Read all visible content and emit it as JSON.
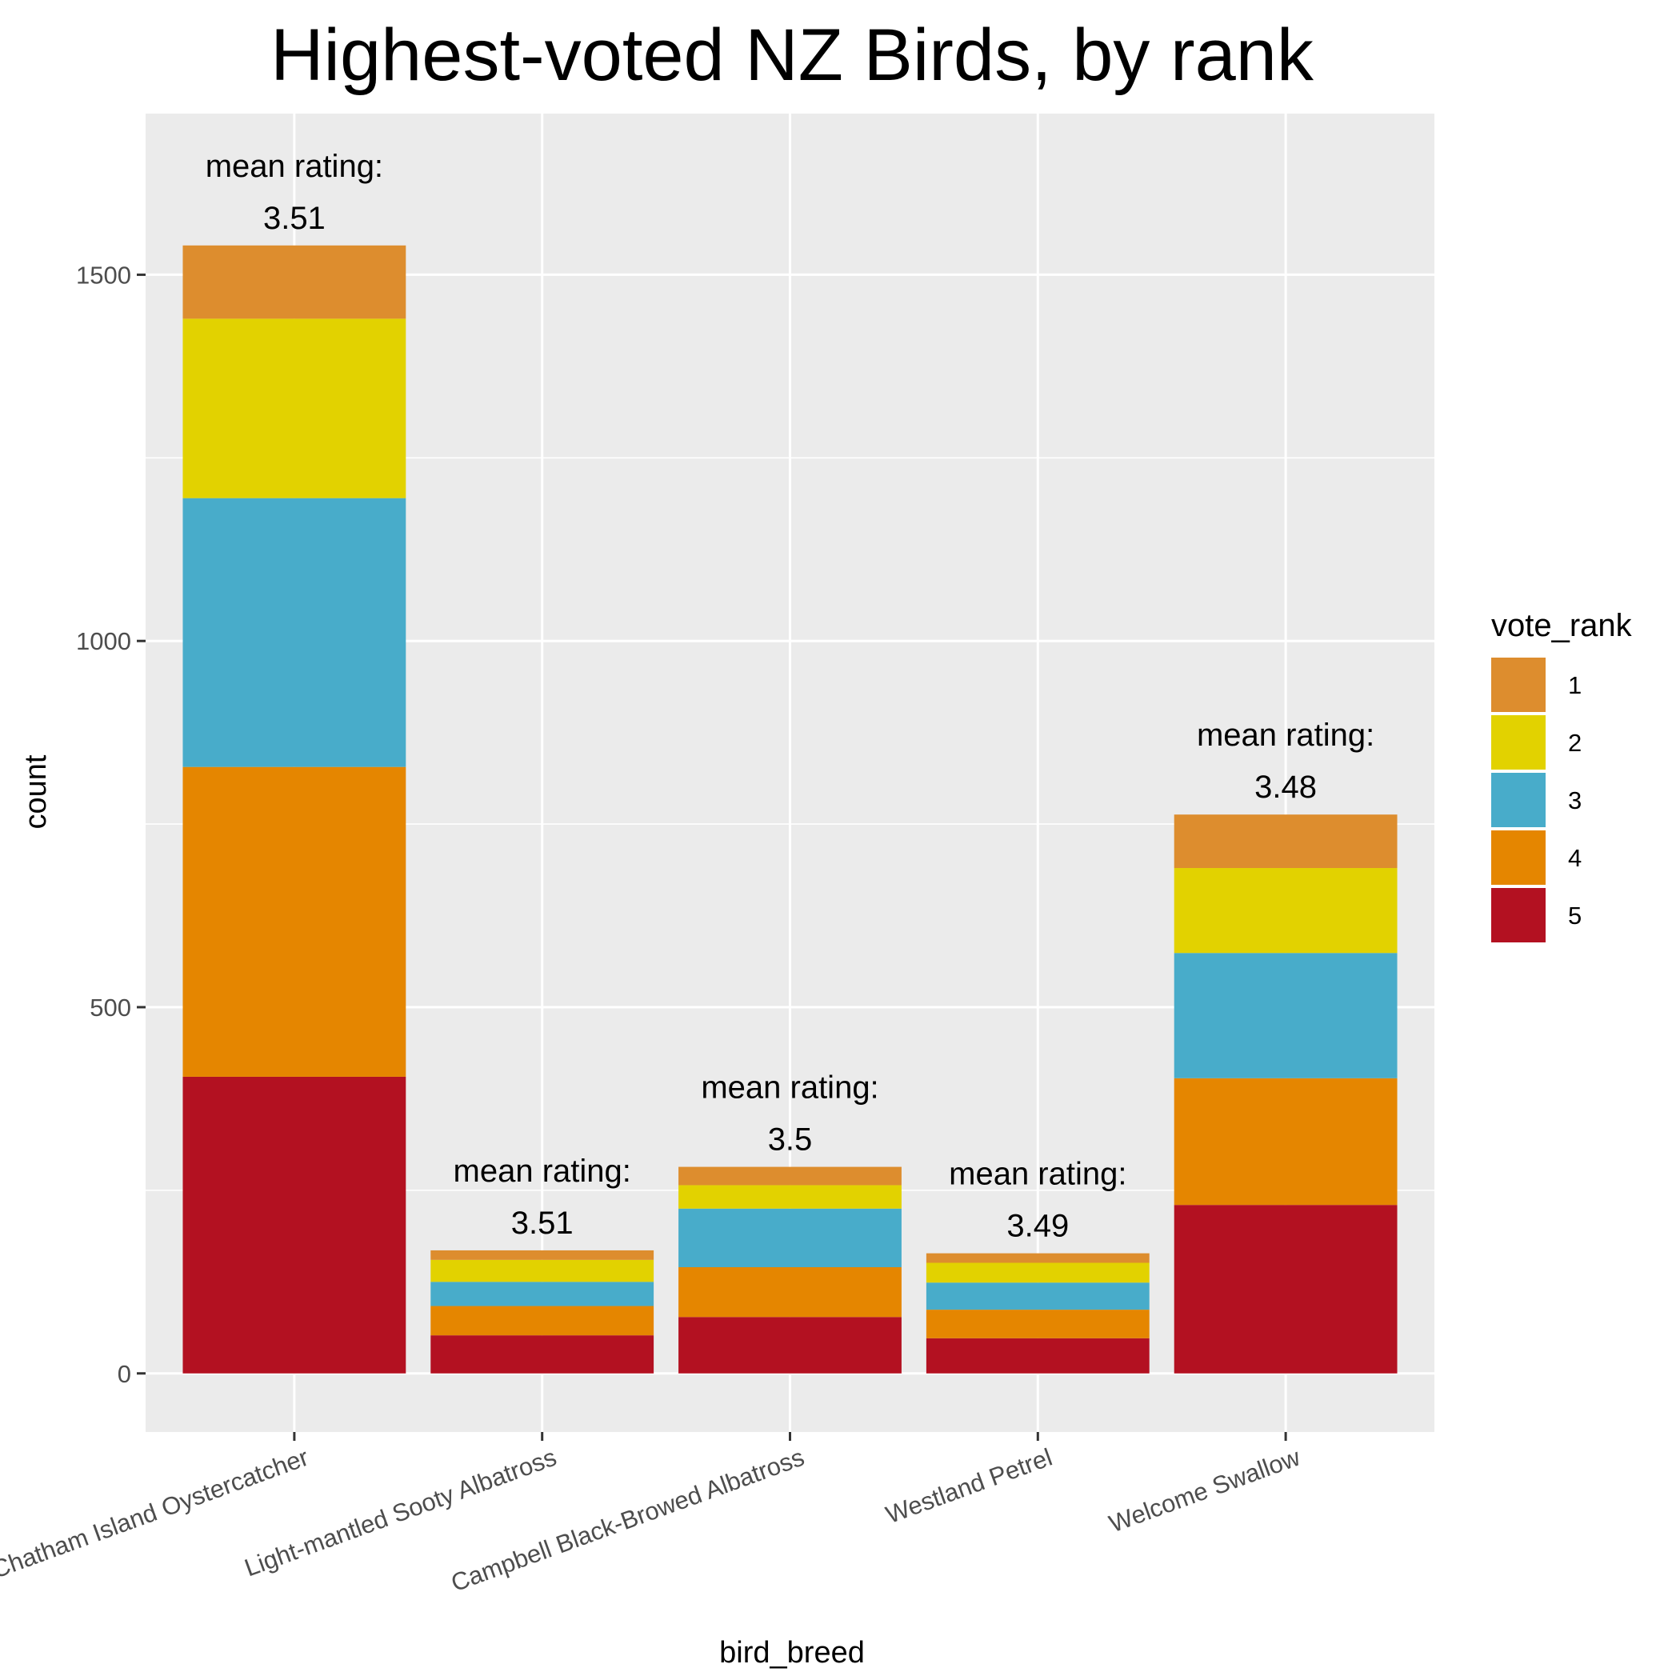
{
  "chart_data": {
    "type": "bar",
    "stacked": true,
    "title": "Highest-voted NZ Birds, by rank",
    "xlabel": "bird_breed",
    "ylabel": "count",
    "ylim": [
      -80,
      1720
    ],
    "yticks": [
      0,
      500,
      1000,
      1500
    ],
    "y_minor_gridlines": [
      250,
      750,
      1250
    ],
    "grid": true,
    "legend_position": "right",
    "legend_title": "vote_rank",
    "categories": [
      "Chatham Island Oystercatcher",
      "Light-mantled Sooty Albatross",
      "Campbell Black-Browed Albatross",
      "Westland Petrel",
      "Welcome Swallow"
    ],
    "series": [
      {
        "name": "5",
        "color": "#B31121",
        "values": [
          405,
          52,
          77,
          48,
          230
        ]
      },
      {
        "name": "4",
        "color": "#E58600",
        "values": [
          423,
          40,
          68,
          39,
          173
        ]
      },
      {
        "name": "3",
        "color": "#48ACCA",
        "values": [
          367,
          33,
          80,
          37,
          171
        ]
      },
      {
        "name": "2",
        "color": "#E2D200",
        "values": [
          245,
          30,
          32,
          27,
          116
        ]
      },
      {
        "name": "1",
        "color": "#DD8D2E",
        "values": [
          100,
          13,
          25,
          13,
          73
        ]
      }
    ],
    "legend_order": [
      "1",
      "2",
      "3",
      "4",
      "5"
    ],
    "annotation_label": "mean rating:",
    "annotations": [
      "3.51",
      "3.51",
      "3.5",
      "3.49",
      "3.48"
    ],
    "panel_background": "#EBEBEB",
    "gridline_color": "#FFFFFF"
  }
}
